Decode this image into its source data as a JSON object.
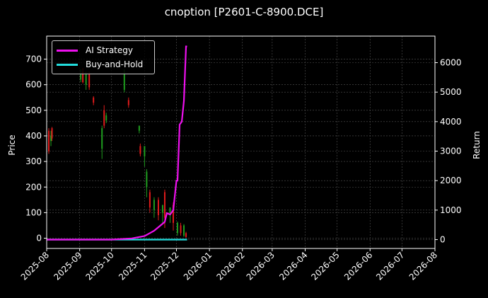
{
  "chart_data": {
    "type": "line+candlestick",
    "title": "cnoption [P2601-C-8900.DCE]",
    "xlabel": "",
    "ylabel_left": "Price",
    "ylabel_right": "Return",
    "x_ticks": [
      "2025-08",
      "2025-09",
      "2025-10",
      "2025-11",
      "2025-12",
      "2026-01",
      "2026-02",
      "2026-03",
      "2026-04",
      "2026-05",
      "2026-06",
      "2026-07",
      "2026-08"
    ],
    "y_left_ticks": [
      0,
      100,
      200,
      300,
      400,
      500,
      600,
      700
    ],
    "y_right_ticks": [
      0,
      1000,
      2000,
      3000,
      4000,
      5000,
      6000
    ],
    "ylim_left": [
      -40,
      790
    ],
    "ylim_right": [
      -300,
      6900
    ],
    "grid": true,
    "legend_position": "upper left",
    "legend": [
      "AI Strategy",
      "Buy-and-Hold"
    ],
    "colors": {
      "ai_strategy": "#ee11ee",
      "buy_and_hold": "#22dddd",
      "candle_up": "#1f9e1f",
      "candle_down": "#e01b1b",
      "background": "#000000",
      "grid": "#555555"
    },
    "series": [
      {
        "name": "AI Strategy",
        "axis": "right",
        "x": [
          "2025-08-01",
          "2025-09-01",
          "2025-10-01",
          "2025-10-20",
          "2025-11-01",
          "2025-11-05",
          "2025-11-10",
          "2025-11-15",
          "2025-11-20",
          "2025-11-22",
          "2025-11-25",
          "2025-11-28",
          "2025-12-01",
          "2025-12-02",
          "2025-12-04",
          "2025-12-06",
          "2025-12-08",
          "2025-12-10",
          "2025-12-11"
        ],
        "values": [
          0,
          0,
          0,
          40,
          120,
          200,
          300,
          450,
          600,
          900,
          850,
          1000,
          2000,
          2000,
          3900,
          4000,
          4700,
          6550,
          6550
        ]
      },
      {
        "name": "Buy-and-Hold",
        "axis": "right",
        "x": [
          "2025-08-01",
          "2025-12-11"
        ],
        "values": [
          0,
          0
        ]
      }
    ],
    "candles": [
      {
        "date": "2025-08-03",
        "open": 420,
        "close": 340,
        "high": 430,
        "low": 330,
        "dir": "down"
      },
      {
        "date": "2025-08-05",
        "open": 380,
        "close": 400,
        "high": 420,
        "low": 360,
        "dir": "up"
      },
      {
        "date": "2025-08-06",
        "open": 430,
        "close": 390,
        "high": 435,
        "low": 380,
        "dir": "down"
      },
      {
        "date": "2025-09-02",
        "open": 620,
        "close": 640,
        "high": 660,
        "low": 610,
        "dir": "up"
      },
      {
        "date": "2025-09-04",
        "open": 650,
        "close": 610,
        "high": 665,
        "low": 605,
        "dir": "down"
      },
      {
        "date": "2025-09-07",
        "open": 600,
        "close": 640,
        "high": 650,
        "low": 580,
        "dir": "up"
      },
      {
        "date": "2025-09-10",
        "open": 640,
        "close": 590,
        "high": 650,
        "low": 580,
        "dir": "down"
      },
      {
        "date": "2025-09-14",
        "open": 550,
        "close": 530,
        "high": 555,
        "low": 520,
        "dir": "down"
      },
      {
        "date": "2025-09-22",
        "open": 350,
        "close": 430,
        "high": 440,
        "low": 310,
        "dir": "up"
      },
      {
        "date": "2025-09-24",
        "open": 500,
        "close": 440,
        "high": 520,
        "low": 430,
        "dir": "down"
      },
      {
        "date": "2025-09-26",
        "open": 460,
        "close": 480,
        "high": 490,
        "low": 450,
        "dir": "up"
      },
      {
        "date": "2025-10-13",
        "open": 580,
        "close": 640,
        "high": 660,
        "low": 570,
        "dir": "up"
      },
      {
        "date": "2025-10-17",
        "open": 540,
        "close": 520,
        "high": 550,
        "low": 510,
        "dir": "down"
      },
      {
        "date": "2025-10-27",
        "open": 420,
        "close": 440,
        "high": 440,
        "low": 410,
        "dir": "up"
      },
      {
        "date": "2025-10-28",
        "open": 360,
        "close": 330,
        "high": 370,
        "low": 320,
        "dir": "down"
      },
      {
        "date": "2025-11-01",
        "open": 320,
        "close": 360,
        "high": 360,
        "low": 280,
        "dir": "up"
      },
      {
        "date": "2025-11-03",
        "open": 200,
        "close": 260,
        "high": 270,
        "low": 160,
        "dir": "up"
      },
      {
        "date": "2025-11-06",
        "open": 180,
        "close": 120,
        "high": 190,
        "low": 100,
        "dir": "down"
      },
      {
        "date": "2025-11-10",
        "open": 110,
        "close": 150,
        "high": 160,
        "low": 80,
        "dir": "up"
      },
      {
        "date": "2025-11-14",
        "open": 150,
        "close": 90,
        "high": 160,
        "low": 70,
        "dir": "down"
      },
      {
        "date": "2025-11-18",
        "open": 100,
        "close": 130,
        "high": 130,
        "low": 60,
        "dir": "up"
      },
      {
        "date": "2025-11-20",
        "open": 180,
        "close": 80,
        "high": 190,
        "low": 40,
        "dir": "down"
      },
      {
        "date": "2025-11-25",
        "open": 100,
        "close": 120,
        "high": 120,
        "low": 60,
        "dir": "up"
      },
      {
        "date": "2025-11-28",
        "open": 130,
        "close": 60,
        "high": 140,
        "low": 30,
        "dir": "down"
      },
      {
        "date": "2025-12-02",
        "open": 20,
        "close": 60,
        "high": 65,
        "low": 10,
        "dir": "up"
      },
      {
        "date": "2025-12-05",
        "open": 50,
        "close": 20,
        "high": 60,
        "low": 10,
        "dir": "down"
      },
      {
        "date": "2025-12-08",
        "open": 10,
        "close": 50,
        "high": 55,
        "low": 5,
        "dir": "up"
      },
      {
        "date": "2025-12-10",
        "open": 20,
        "close": 5,
        "high": 25,
        "low": 2,
        "dir": "down"
      }
    ]
  }
}
